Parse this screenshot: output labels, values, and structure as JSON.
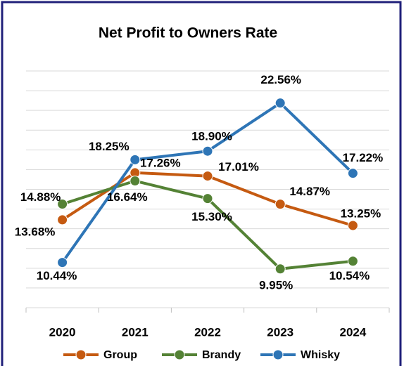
{
  "chart_data": {
    "type": "line",
    "title": "Net Profit to Owners Rate",
    "categories": [
      "2020",
      "2021",
      "2022",
      "2023",
      "2024"
    ],
    "series": [
      {
        "name": "Group",
        "color": "#c55a11",
        "values": [
          13.68,
          17.26,
          17.01,
          14.87,
          13.25
        ],
        "value_labels": [
          "13.68%",
          "17.26%",
          "17.01%",
          "14.87%",
          "13.25%"
        ]
      },
      {
        "name": "Brandy",
        "color": "#548235",
        "values": [
          14.88,
          16.64,
          15.3,
          9.95,
          10.54
        ],
        "value_labels": [
          "14.88%",
          "16.64%",
          "15.30%",
          "9.95%",
          "10.54%"
        ]
      },
      {
        "name": "Whisky",
        "color": "#2e75b6",
        "values": [
          10.44,
          18.25,
          18.9,
          22.56,
          17.22
        ],
        "value_labels": [
          "10.44%",
          "18.25%",
          "18.90%",
          "22.56%",
          "17.22%"
        ]
      }
    ],
    "ylim": [
      7,
      25
    ],
    "yticks": [
      7,
      8.5,
      10,
      11.5,
      13,
      14.5,
      16,
      17.5,
      19,
      20.5,
      22,
      23.5,
      25
    ],
    "grid": true,
    "legend": "bottom"
  }
}
